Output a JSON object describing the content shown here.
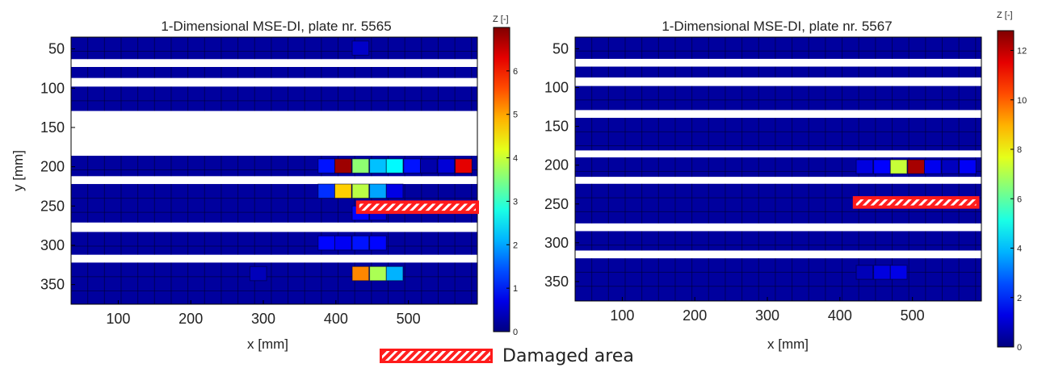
{
  "legend": {
    "label": "Damaged area"
  },
  "chart_data": [
    {
      "type": "heatmap",
      "title": "1-Dimensional MSE-DI, plate nr. 5565",
      "xlabel": "x [mm]",
      "ylabel": "y [mm]",
      "xlim": [
        35,
        595
      ],
      "ylim": [
        35,
        375
      ],
      "x_ticks": [
        100,
        200,
        300,
        400,
        500
      ],
      "y_ticks": [
        50,
        100,
        150,
        200,
        250,
        300,
        350
      ],
      "colorbar": {
        "label": "Z [-]",
        "min": 0,
        "max": 7,
        "ticks": [
          0,
          1,
          2,
          3,
          4,
          5,
          6
        ],
        "colormap": "jet"
      },
      "cell_x_width": 23,
      "cell_y_height": 18,
      "strips": [
        {
          "y_range": [
            35,
            63
          ],
          "rows": [
            {
              "y": 49,
              "cells": [
                {
                  "x": 434,
                  "value": 0.5
                }
              ]
            }
          ]
        },
        {
          "y_range": [
            73,
            87
          ],
          "rows": [
            {
              "y": 80,
              "cells": []
            }
          ]
        },
        {
          "y_range": [
            98,
            129
          ],
          "rows": [
            {
              "y": 113,
              "cells": []
            }
          ]
        },
        {
          "y_range": [
            186,
            212
          ],
          "rows": [
            {
              "y": 199,
              "cells": [
                {
                  "x": 387,
                  "value": 1.0
                },
                {
                  "x": 410,
                  "value": 6.8
                },
                {
                  "x": 434,
                  "value": 3.6
                },
                {
                  "x": 458,
                  "value": 2.2
                },
                {
                  "x": 481,
                  "value": 2.6
                },
                {
                  "x": 505,
                  "value": 1.0
                },
                {
                  "x": 528,
                  "value": 0.3
                },
                {
                  "x": 552,
                  "value": 0.6
                },
                {
                  "x": 576,
                  "value": 6.3
                }
              ]
            }
          ]
        },
        {
          "y_range": [
            222,
            271
          ],
          "rows": [
            {
              "y": 231,
              "cells": [
                {
                  "x": 387,
                  "value": 1.2
                },
                {
                  "x": 410,
                  "value": 4.7
                },
                {
                  "x": 434,
                  "value": 3.9
                },
                {
                  "x": 458,
                  "value": 2.0
                },
                {
                  "x": 481,
                  "value": 0.7
                }
              ]
            },
            {
              "y": 259,
              "cells": [
                {
                  "x": 434,
                  "value": 0.9
                },
                {
                  "x": 458,
                  "value": 0.6
                }
              ]
            }
          ]
        },
        {
          "y_range": [
            283,
            312
          ],
          "rows": [
            {
              "y": 297,
              "cells": [
                {
                  "x": 387,
                  "value": 0.9
                },
                {
                  "x": 410,
                  "value": 0.8
                },
                {
                  "x": 434,
                  "value": 1.0
                },
                {
                  "x": 458,
                  "value": 0.9
                }
              ]
            }
          ]
        },
        {
          "y_range": [
            322,
            375
          ],
          "rows": [
            {
              "y": 336,
              "cells": [
                {
                  "x": 434,
                  "value": 5.2
                },
                {
                  "x": 458,
                  "value": 3.8
                },
                {
                  "x": 481,
                  "value": 2.1
                },
                {
                  "x": 293,
                  "value": 0.4
                }
              ]
            }
          ]
        }
      ],
      "damaged_area": {
        "x_range": [
          430,
          595
        ],
        "y_range": [
          245,
          258
        ]
      }
    },
    {
      "type": "heatmap",
      "title": "1-Dimensional MSE-DI, plate nr. 5567",
      "xlabel": "x [mm]",
      "ylabel": "",
      "xlim": [
        35,
        595
      ],
      "ylim": [
        35,
        375
      ],
      "x_ticks": [
        100,
        200,
        300,
        400,
        500
      ],
      "y_ticks": [
        50,
        100,
        150,
        200,
        250,
        300,
        350
      ],
      "colorbar": {
        "label": "Z [-]",
        "min": 0,
        "max": 12.8,
        "ticks": [
          0,
          2,
          4,
          6,
          8,
          10,
          12
        ],
        "colormap": "jet"
      },
      "cell_x_width": 23,
      "cell_y_height": 18,
      "strips": [
        {
          "y_range": [
            35,
            63
          ],
          "rows": [
            {
              "y": 49,
              "cells": []
            }
          ]
        },
        {
          "y_range": [
            73,
            87
          ],
          "rows": [
            {
              "y": 80,
              "cells": []
            }
          ]
        },
        {
          "y_range": [
            98,
            129
          ],
          "rows": [
            {
              "y": 113,
              "cells": []
            }
          ]
        },
        {
          "y_range": [
            139,
            181
          ],
          "rows": [
            {
              "y": 160,
              "cells": []
            }
          ]
        },
        {
          "y_range": [
            190,
            215
          ],
          "rows": [
            {
              "y": 202,
              "cells": [
                {
                  "x": 434,
                  "value": 1.2
                },
                {
                  "x": 458,
                  "value": 1.6
                },
                {
                  "x": 481,
                  "value": 7.3
                },
                {
                  "x": 505,
                  "value": 12.3
                },
                {
                  "x": 528,
                  "value": 1.4
                },
                {
                  "x": 552,
                  "value": 0.8
                },
                {
                  "x": 576,
                  "value": 1.5
                }
              ]
            }
          ]
        },
        {
          "y_range": [
            224,
            275
          ],
          "rows": [
            {
              "y": 250,
              "cells": []
            }
          ]
        },
        {
          "y_range": [
            285,
            310
          ],
          "rows": [
            {
              "y": 297,
              "cells": []
            }
          ]
        },
        {
          "y_range": [
            320,
            375
          ],
          "rows": [
            {
              "y": 338,
              "cells": [
                {
                  "x": 434,
                  "value": 0.7
                },
                {
                  "x": 458,
                  "value": 1.2
                },
                {
                  "x": 481,
                  "value": 1.3
                }
              ]
            }
          ]
        }
      ],
      "damaged_area": {
        "x_range": [
          420,
          590
        ],
        "y_range": [
          242,
          254
        ]
      }
    }
  ]
}
